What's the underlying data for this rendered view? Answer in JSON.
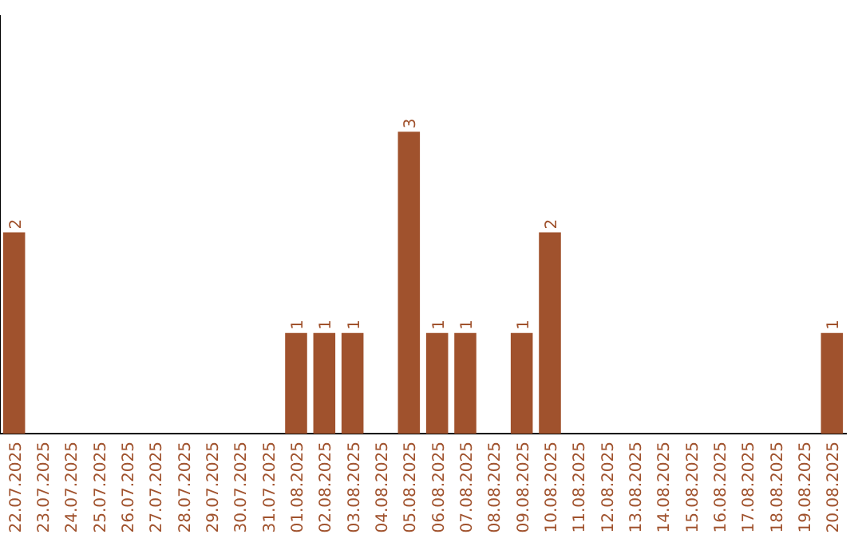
{
  "chart_data": {
    "type": "bar",
    "categories": [
      "22.07.2025",
      "23.07.2025",
      "24.07.2025",
      "25.07.2025",
      "26.07.2025",
      "27.07.2025",
      "28.07.2025",
      "29.07.2025",
      "30.07.2025",
      "31.07.2025",
      "01.08.2025",
      "02.08.2025",
      "03.08.2025",
      "04.08.2025",
      "05.08.2025",
      "06.08.2025",
      "07.08.2025",
      "08.08.2025",
      "09.08.2025",
      "10.08.2025",
      "11.08.2025",
      "12.08.2025",
      "13.08.2025",
      "14.08.2025",
      "15.08.2025",
      "16.08.2025",
      "17.08.2025",
      "18.08.2025",
      "19.08.2025",
      "20.08.2025"
    ],
    "values": [
      2,
      0,
      0,
      0,
      0,
      0,
      0,
      0,
      0,
      0,
      1,
      1,
      1,
      0,
      3,
      1,
      1,
      0,
      1,
      2,
      0,
      0,
      0,
      0,
      0,
      0,
      0,
      0,
      0,
      1
    ],
    "value_labels": [
      "2",
      null,
      null,
      null,
      null,
      null,
      null,
      null,
      null,
      null,
      "1",
      "1",
      "1",
      null,
      "3",
      "1",
      "1",
      null,
      "1",
      "2",
      null,
      null,
      null,
      null,
      null,
      null,
      null,
      null,
      null,
      "1"
    ],
    "color": "#a0522d",
    "ylim": [
      0,
      4.15
    ],
    "tick_labels": "x",
    "grid": false,
    "legend": false
  }
}
